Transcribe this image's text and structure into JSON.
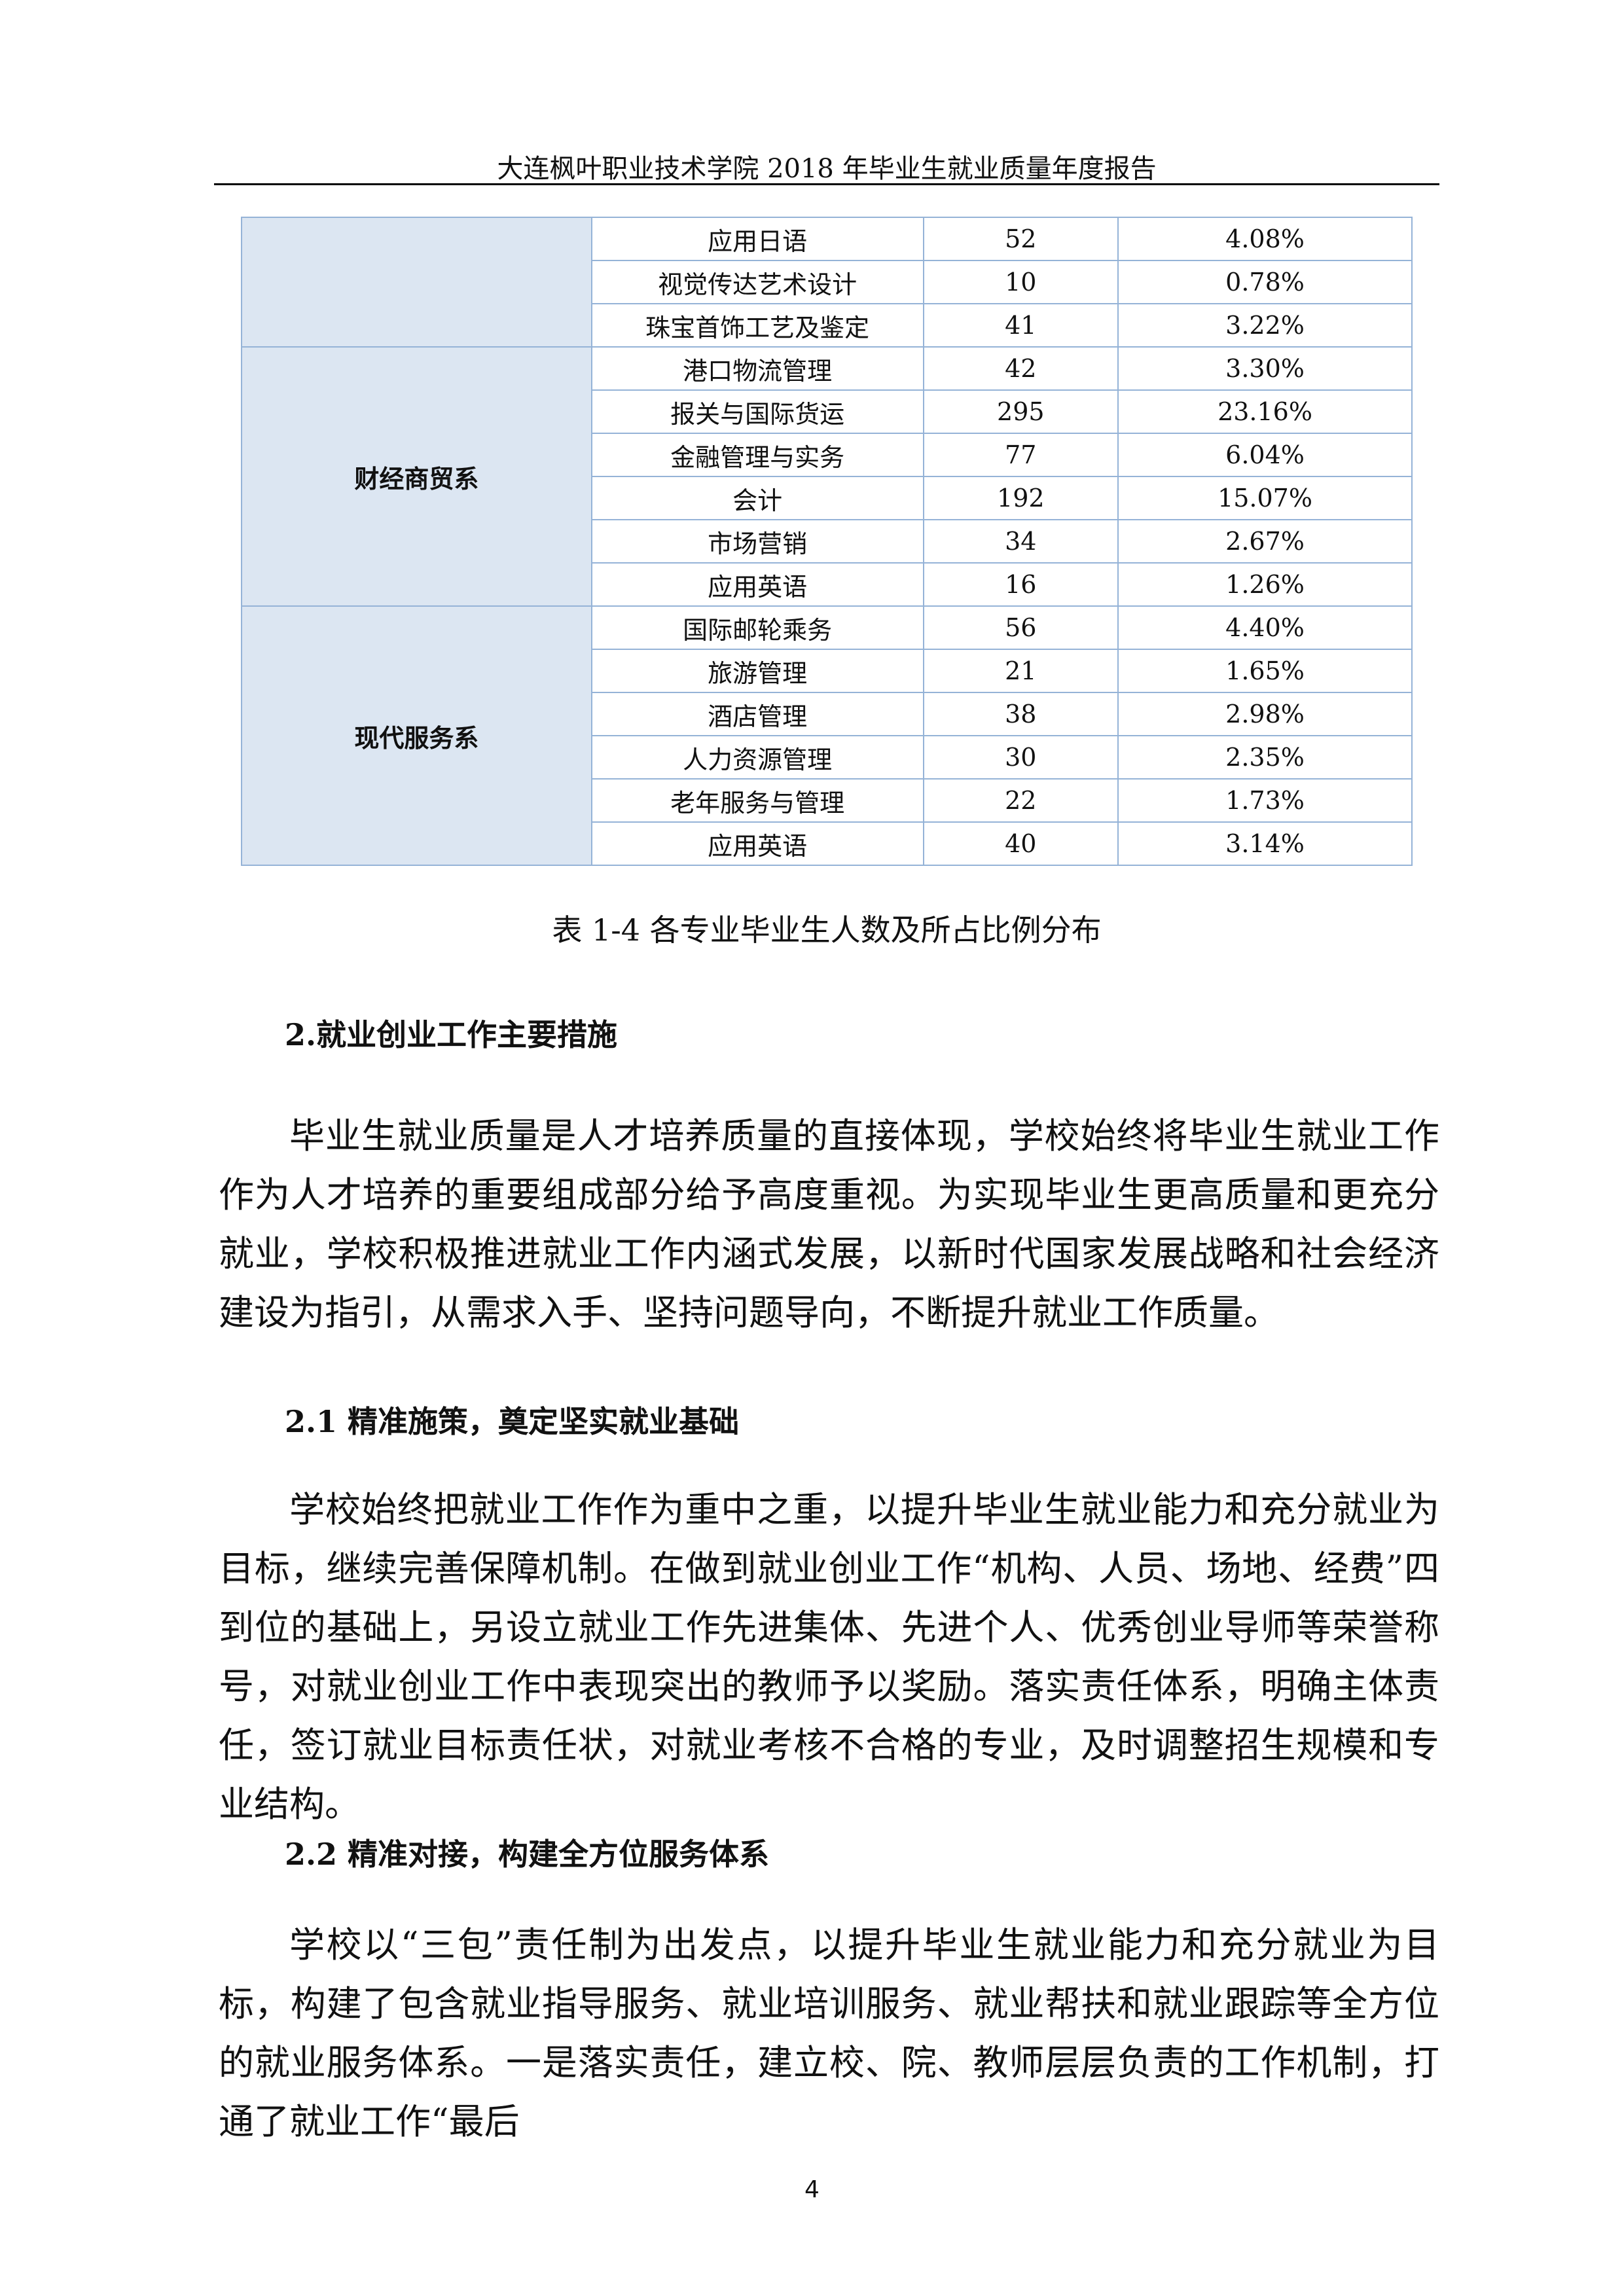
{
  "header": {
    "title": "大连枫叶职业技术学院 2018 年毕业生就业质量年度报告"
  },
  "table": {
    "groups": [
      {
        "rows": [
          [
            "应用日语",
            52,
            "4.08%"
          ],
          [
            "视觉传达艺术设计",
            10,
            "0.78%"
          ],
          [
            "珠宝首饰工艺及鉴定",
            41,
            "3.22%"
          ]
        ]
      },
      {
        "department": "财经商贸系",
        "rows": [
          [
            "港口物流管理",
            42,
            "3.30%"
          ],
          [
            "报关与国际货运",
            295,
            "23.16%"
          ],
          [
            "金融管理与实务",
            77,
            "6.04%"
          ],
          [
            "会计",
            192,
            "15.07%"
          ],
          [
            "市场营销",
            34,
            "2.67%"
          ],
          [
            "应用英语",
            16,
            "1.26%"
          ]
        ]
      },
      {
        "department": "现代服务系",
        "rows": [
          [
            "国际邮轮乘务",
            56,
            "4.40%"
          ],
          [
            "旅游管理",
            21,
            "1.65%"
          ],
          [
            "酒店管理",
            38,
            "2.98%"
          ],
          [
            "人力资源管理",
            30,
            "2.35%"
          ],
          [
            "老年服务与管理",
            22,
            "1.73%"
          ],
          [
            "应用英语",
            40,
            "3.14%"
          ]
        ]
      }
    ],
    "caption": "表 1-4 各专业毕业生人数及所占比例分布"
  },
  "sections": [
    {
      "heading": "2.就业创业工作主要措施",
      "text": "毕业生就业质量是人才培养质量的直接体现，学校始终将毕业生就业工作作为人才培养的重要组成部分给予高度重视。为实现毕业生更高质量和更充分就业，学校积极推进就业工作内涵式发展，以新时代国家发展战略和社会经济建设为指引，从需求入手、坚持问题导向，不断提升就业工作质量。"
    },
    {
      "heading": "2.1 精准施策，奠定坚实就业基础",
      "text": "学校始终把就业工作作为重中之重，以提升毕业生就业能力和充分就业为目标，继续完善保障机制。在做到就业创业工作“机构、人员、场地、经费”四到位的基础上，另设立就业工作先进集体、先进个人、优秀创业导师等荣誉称号，对就业创业工作中表现突出的教师予以奖励。落实责任体系，明确主体责任，签订就业目标责任状，对就业考核不合格的专业，及时调整招生规模和专业结构。"
    },
    {
      "heading": "2.2 精准对接，构建全方位服务体系",
      "text": "学校以“三包”责任制为出发点，以提升毕业生就业能力和充分就业为目标，构建了包含就业指导服务、就业培训服务、就业帮扶和就业跟踪等全方位的就业服务体系。一是落实责任，建立校、院、教师层层负责的工作机制，打通了就业工作“最后"
    }
  ],
  "footer": {
    "page": "4"
  }
}
